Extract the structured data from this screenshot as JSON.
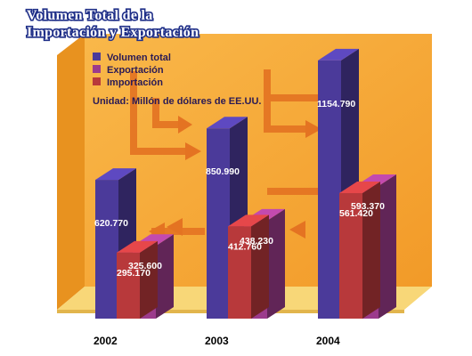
{
  "chart_data": {
    "type": "bar",
    "title_lines": [
      "Volumen Total de la",
      "Importación y Exportación"
    ],
    "unit": "Unidad: Millón de dólares de EE.UU.",
    "categories": [
      "2002",
      "2003",
      "2004"
    ],
    "series": [
      {
        "name": "Volumen total",
        "values": [
          620.77,
          850.99,
          1154.79
        ],
        "labels": [
          "620.770",
          "850.990",
          "1154.790"
        ],
        "color": "#4b3a9a"
      },
      {
        "name": "Exportación",
        "values": [
          325.6,
          438.23,
          593.37
        ],
        "labels": [
          "325.600",
          "438.230",
          "593.370"
        ],
        "color": "#9c3b8c"
      },
      {
        "name": "Importación",
        "values": [
          295.17,
          412.76,
          561.42
        ],
        "labels": [
          "295.170",
          "412.760",
          "561.420"
        ],
        "color": "#b8393b"
      }
    ],
    "ylim": [
      0,
      1250
    ],
    "legend_position": "top-left",
    "colors": {
      "background": "#f5a533",
      "floor": "#f8d778",
      "arrow": "#e47322"
    }
  }
}
